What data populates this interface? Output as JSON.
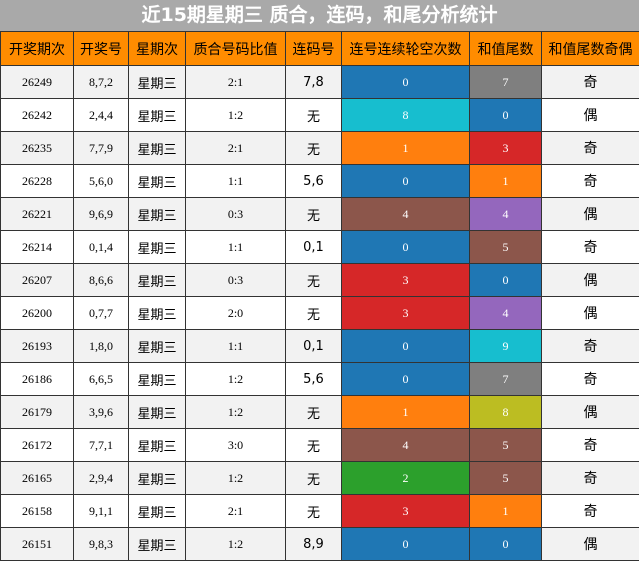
{
  "title": "近15期星期三 质合，连码，和尾分析统计",
  "headers": [
    "开奖期次",
    "开奖号",
    "星期次",
    "质合号码比值",
    "连码号",
    "连号连续轮空次数",
    "和值尾数",
    "和值尾数奇偶"
  ],
  "rows": [
    {
      "issue": "26249",
      "numbers": "8,7,2",
      "weekday": "星期三",
      "ratio": "2:1",
      "consec": "7,8",
      "gap": "0",
      "gap_color": "#1f77b4",
      "tail": "7",
      "tail_color": "#7f7f7f",
      "parity": "奇"
    },
    {
      "issue": "26242",
      "numbers": "2,4,4",
      "weekday": "星期三",
      "ratio": "1:2",
      "consec": "无",
      "gap": "8",
      "gap_color": "#17becf",
      "tail": "0",
      "tail_color": "#1f77b4",
      "parity": "偶"
    },
    {
      "issue": "26235",
      "numbers": "7,7,9",
      "weekday": "星期三",
      "ratio": "2:1",
      "consec": "无",
      "gap": "1",
      "gap_color": "#ff7f0e",
      "tail": "3",
      "tail_color": "#d62728",
      "parity": "奇"
    },
    {
      "issue": "26228",
      "numbers": "5,6,0",
      "weekday": "星期三",
      "ratio": "1:1",
      "consec": "5,6",
      "gap": "0",
      "gap_color": "#1f77b4",
      "tail": "1",
      "tail_color": "#ff7f0e",
      "parity": "奇"
    },
    {
      "issue": "26221",
      "numbers": "9,6,9",
      "weekday": "星期三",
      "ratio": "0:3",
      "consec": "无",
      "gap": "4",
      "gap_color": "#8c564b",
      "tail": "4",
      "tail_color": "#9467bd",
      "parity": "偶"
    },
    {
      "issue": "26214",
      "numbers": "0,1,4",
      "weekday": "星期三",
      "ratio": "1:1",
      "consec": "0,1",
      "gap": "0",
      "gap_color": "#1f77b4",
      "tail": "5",
      "tail_color": "#8c564b",
      "parity": "奇"
    },
    {
      "issue": "26207",
      "numbers": "8,6,6",
      "weekday": "星期三",
      "ratio": "0:3",
      "consec": "无",
      "gap": "3",
      "gap_color": "#d62728",
      "tail": "0",
      "tail_color": "#1f77b4",
      "parity": "偶"
    },
    {
      "issue": "26200",
      "numbers": "0,7,7",
      "weekday": "星期三",
      "ratio": "2:0",
      "consec": "无",
      "gap": "3",
      "gap_color": "#d62728",
      "tail": "4",
      "tail_color": "#9467bd",
      "parity": "偶"
    },
    {
      "issue": "26193",
      "numbers": "1,8,0",
      "weekday": "星期三",
      "ratio": "1:1",
      "consec": "0,1",
      "gap": "0",
      "gap_color": "#1f77b4",
      "tail": "9",
      "tail_color": "#17becf",
      "parity": "奇"
    },
    {
      "issue": "26186",
      "numbers": "6,6,5",
      "weekday": "星期三",
      "ratio": "1:2",
      "consec": "5,6",
      "gap": "0",
      "gap_color": "#1f77b4",
      "tail": "7",
      "tail_color": "#7f7f7f",
      "parity": "奇"
    },
    {
      "issue": "26179",
      "numbers": "3,9,6",
      "weekday": "星期三",
      "ratio": "1:2",
      "consec": "无",
      "gap": "1",
      "gap_color": "#ff7f0e",
      "tail": "8",
      "tail_color": "#bcbd22",
      "parity": "偶"
    },
    {
      "issue": "26172",
      "numbers": "7,7,1",
      "weekday": "星期三",
      "ratio": "3:0",
      "consec": "无",
      "gap": "4",
      "gap_color": "#8c564b",
      "tail": "5",
      "tail_color": "#8c564b",
      "parity": "奇"
    },
    {
      "issue": "26165",
      "numbers": "2,9,4",
      "weekday": "星期三",
      "ratio": "1:2",
      "consec": "无",
      "gap": "2",
      "gap_color": "#2ca02c",
      "tail": "5",
      "tail_color": "#8c564b",
      "parity": "奇"
    },
    {
      "issue": "26158",
      "numbers": "9,1,1",
      "weekday": "星期三",
      "ratio": "2:1",
      "consec": "无",
      "gap": "3",
      "gap_color": "#d62728",
      "tail": "1",
      "tail_color": "#ff7f0e",
      "parity": "奇"
    },
    {
      "issue": "26151",
      "numbers": "9,8,3",
      "weekday": "星期三",
      "ratio": "1:2",
      "consec": "8,9",
      "gap": "0",
      "gap_color": "#1f77b4",
      "tail": "0",
      "tail_color": "#1f77b4",
      "parity": "偶"
    }
  ]
}
